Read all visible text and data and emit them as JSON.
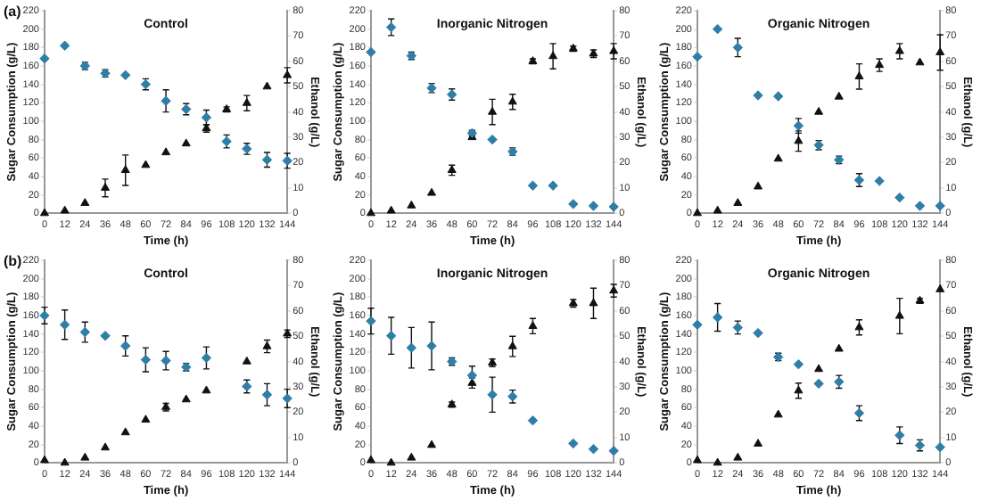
{
  "chart_data": [
    {
      "type": "scatter",
      "title": "Control",
      "xlabel": "Time (h)",
      "ylabel": "Sugar Consumption (g/L)",
      "y2label": "Ethanol (g/L)",
      "annotations": [
        "(a)"
      ],
      "x": [
        0,
        12,
        24,
        36,
        48,
        60,
        72,
        84,
        96,
        108,
        120,
        132,
        144
      ],
      "xlim": [
        0,
        144
      ],
      "xticks": [
        0,
        12,
        24,
        36,
        48,
        60,
        72,
        84,
        96,
        108,
        120,
        132,
        144
      ],
      "ylim": [
        0,
        220
      ],
      "yticks": [
        0,
        20,
        40,
        60,
        80,
        100,
        120,
        140,
        160,
        180,
        200,
        220
      ],
      "y2lim": [
        0,
        80
      ],
      "y2ticks": [
        0,
        10,
        20,
        30,
        40,
        50,
        60,
        70,
        80
      ],
      "grid": false,
      "legend": false,
      "series": [
        {
          "color": "#2f7ea8",
          "marker": "diamond",
          "values": [
            168,
            182,
            160,
            152,
            150,
            140,
            122,
            113,
            104,
            78,
            70,
            58,
            57
          ],
          "errors": [
            null,
            null,
            4,
            4,
            null,
            6,
            12,
            6,
            8,
            7,
            6,
            8,
            8
          ]
        },
        {
          "color": "#111111",
          "marker": "triangle",
          "axis": "y2",
          "values": [
            0,
            1,
            4,
            10,
            17,
            19,
            24,
            27.5,
            33.5,
            41,
            43.5,
            50,
            54.5
          ],
          "errors": [
            null,
            null,
            null,
            3.5,
            6,
            null,
            null,
            null,
            1.5,
            1,
            3,
            null,
            3
          ]
        }
      ]
    },
    {
      "type": "scatter",
      "title": "Inorganic Nitrogen",
      "xlabel": "Time (h)",
      "ylabel": "Sugar Consumption (g/L)",
      "y2label": "Ethanol (g/L)",
      "x": [
        0,
        12,
        24,
        36,
        48,
        60,
        72,
        84,
        96,
        108,
        120,
        132,
        144
      ],
      "xlim": [
        0,
        144
      ],
      "xticks": [
        0,
        12,
        24,
        36,
        48,
        60,
        72,
        84,
        96,
        108,
        120,
        132,
        144
      ],
      "ylim": [
        0,
        220
      ],
      "yticks": [
        0,
        20,
        40,
        60,
        80,
        100,
        120,
        140,
        160,
        180,
        200,
        220
      ],
      "y2lim": [
        0,
        80
      ],
      "y2ticks": [
        0,
        10,
        20,
        30,
        40,
        50,
        60,
        70,
        80
      ],
      "grid": false,
      "legend": false,
      "series": [
        {
          "color": "#2f7ea8",
          "marker": "diamond",
          "values": [
            175,
            202,
            171,
            136,
            129,
            87,
            80,
            67,
            30,
            30,
            10,
            8,
            7
          ],
          "errors": [
            null,
            9,
            4,
            5,
            6,
            3,
            null,
            4,
            null,
            null,
            null,
            null,
            null
          ]
        },
        {
          "color": "#111111",
          "marker": "triangle",
          "axis": "y2",
          "values": [
            0,
            1,
            3,
            8,
            17,
            30,
            40,
            44,
            60,
            62,
            65,
            63,
            64
          ],
          "errors": [
            null,
            null,
            null,
            null,
            2,
            null,
            5,
            3,
            1,
            5,
            1,
            1.5,
            3
          ]
        }
      ]
    },
    {
      "type": "scatter",
      "title": "Organic Nitrogen",
      "xlabel": "Time (h)",
      "ylabel": "Sugar Consumption (g/L)",
      "y2label": "Ethanol (g/L)",
      "x": [
        0,
        12,
        24,
        36,
        48,
        60,
        72,
        84,
        96,
        108,
        120,
        132,
        144
      ],
      "xlim": [
        0,
        144
      ],
      "xticks": [
        0,
        12,
        24,
        36,
        48,
        60,
        72,
        84,
        96,
        108,
        120,
        132,
        144
      ],
      "ylim": [
        0,
        220
      ],
      "yticks": [
        0,
        20,
        40,
        60,
        80,
        100,
        120,
        140,
        160,
        180,
        200,
        220
      ],
      "y2lim": [
        0,
        80
      ],
      "y2ticks": [
        0,
        10,
        20,
        30,
        40,
        50,
        60,
        70,
        80
      ],
      "grid": false,
      "legend": false,
      "series": [
        {
          "color": "#2f7ea8",
          "marker": "diamond",
          "values": [
            170,
            200,
            180,
            128,
            127,
            95,
            74,
            58,
            36,
            35,
            17,
            8,
            8
          ],
          "errors": [
            null,
            null,
            10,
            null,
            null,
            8,
            5,
            4,
            7,
            null,
            null,
            null,
            null
          ]
        },
        {
          "color": "#111111",
          "marker": "triangle",
          "axis": "y2",
          "values": [
            0,
            1,
            4,
            10.5,
            21.5,
            28.5,
            40,
            46,
            54,
            58.5,
            64,
            59.5,
            63.5
          ],
          "errors": [
            null,
            null,
            null,
            null,
            null,
            4,
            null,
            null,
            5,
            2.5,
            3,
            null,
            7
          ]
        }
      ]
    },
    {
      "type": "scatter",
      "title": "Control",
      "xlabel": "Time (h)",
      "ylabel": "Sugar Consumption (g/L)",
      "y2label": "Ethanol (g/L)",
      "annotations": [
        "(b)"
      ],
      "x": [
        0,
        12,
        24,
        36,
        48,
        60,
        72,
        84,
        96,
        108,
        120,
        132,
        144
      ],
      "xlim": [
        0,
        144
      ],
      "xticks": [
        0,
        12,
        24,
        36,
        48,
        60,
        72,
        84,
        96,
        108,
        120,
        132,
        144
      ],
      "ylim": [
        0,
        220
      ],
      "yticks": [
        0,
        20,
        40,
        60,
        80,
        100,
        120,
        140,
        160,
        180,
        200,
        220
      ],
      "y2lim": [
        0,
        80
      ],
      "y2ticks": [
        0,
        10,
        20,
        30,
        40,
        50,
        60,
        70,
        80
      ],
      "grid": false,
      "legend": false,
      "series": [
        {
          "color": "#2f7ea8",
          "marker": "diamond",
          "values": [
            160,
            150,
            142,
            138,
            127,
            112,
            111,
            104,
            114,
            null,
            83,
            74,
            70
          ],
          "errors": [
            9,
            16,
            11,
            null,
            11,
            13,
            10,
            4,
            12,
            null,
            7,
            12,
            10
          ]
        },
        {
          "color": "#111111",
          "marker": "triangle",
          "axis": "y2",
          "values": [
            1,
            0,
            2,
            6,
            12,
            17,
            22,
            25,
            28.5,
            null,
            40,
            46,
            51
          ],
          "errors": [
            null,
            null,
            null,
            null,
            null,
            null,
            1.5,
            null,
            null,
            null,
            null,
            2.5,
            1.5
          ]
        }
      ]
    },
    {
      "type": "scatter",
      "title": "Inorganic Nitrogen",
      "xlabel": "Time (h)",
      "ylabel": "Sugar Consumption (g/L)",
      "y2label": "Ethanol (g/L)",
      "x": [
        0,
        12,
        24,
        36,
        48,
        60,
        72,
        84,
        96,
        108,
        120,
        132,
        144
      ],
      "xlim": [
        0,
        144
      ],
      "xticks": [
        0,
        12,
        24,
        36,
        48,
        60,
        72,
        84,
        96,
        108,
        120,
        132,
        144
      ],
      "ylim": [
        0,
        220
      ],
      "yticks": [
        0,
        20,
        40,
        60,
        80,
        100,
        120,
        140,
        160,
        180,
        200,
        220
      ],
      "y2lim": [
        0,
        80
      ],
      "y2ticks": [
        0,
        10,
        20,
        30,
        40,
        50,
        60,
        70,
        80
      ],
      "grid": false,
      "legend": false,
      "series": [
        {
          "color": "#2f7ea8",
          "marker": "diamond",
          "values": [
            154,
            138,
            125,
            127,
            110,
            95,
            74,
            72,
            46,
            null,
            21,
            15,
            13
          ],
          "errors": [
            14,
            20,
            22,
            26,
            4,
            10,
            19,
            7,
            null,
            null,
            null,
            null,
            null
          ]
        },
        {
          "color": "#111111",
          "marker": "triangle",
          "axis": "y2",
          "values": [
            1,
            0,
            2,
            7,
            23,
            31.5,
            39.5,
            46,
            54,
            null,
            63,
            63,
            68
          ],
          "errors": [
            null,
            null,
            null,
            null,
            1,
            2,
            1.5,
            4,
            3,
            null,
            1.5,
            6,
            2.5
          ]
        }
      ]
    },
    {
      "type": "scatter",
      "title": "Organic Nitrogen",
      "xlabel": "Time (h)",
      "ylabel": "Sugar Consumption (g/L)",
      "y2label": "Ethanol (g/L)",
      "x": [
        0,
        12,
        24,
        36,
        48,
        60,
        72,
        84,
        96,
        108,
        120,
        132,
        144
      ],
      "xlim": [
        0,
        144
      ],
      "xticks": [
        0,
        12,
        24,
        36,
        48,
        60,
        72,
        84,
        96,
        108,
        120,
        132,
        144
      ],
      "ylim": [
        0,
        220
      ],
      "yticks": [
        0,
        20,
        40,
        60,
        80,
        100,
        120,
        140,
        160,
        180,
        200,
        220
      ],
      "y2lim": [
        0,
        80
      ],
      "y2ticks": [
        0,
        10,
        20,
        30,
        40,
        50,
        60,
        70,
        80
      ],
      "grid": false,
      "legend": false,
      "series": [
        {
          "color": "#2f7ea8",
          "marker": "diamond",
          "values": [
            150,
            158,
            147,
            141,
            115,
            107,
            86,
            88,
            54,
            null,
            30,
            19,
            17
          ],
          "errors": [
            null,
            15,
            7,
            null,
            4,
            null,
            null,
            7,
            8,
            null,
            9,
            6,
            null
          ]
        },
        {
          "color": "#111111",
          "marker": "triangle",
          "axis": "y2",
          "values": [
            1,
            0,
            2,
            7.5,
            19,
            28.5,
            37,
            45,
            53.5,
            null,
            58,
            64,
            68.5
          ],
          "errors": [
            null,
            null,
            null,
            null,
            null,
            3,
            null,
            null,
            3,
            null,
            7,
            1,
            null
          ]
        }
      ]
    }
  ]
}
